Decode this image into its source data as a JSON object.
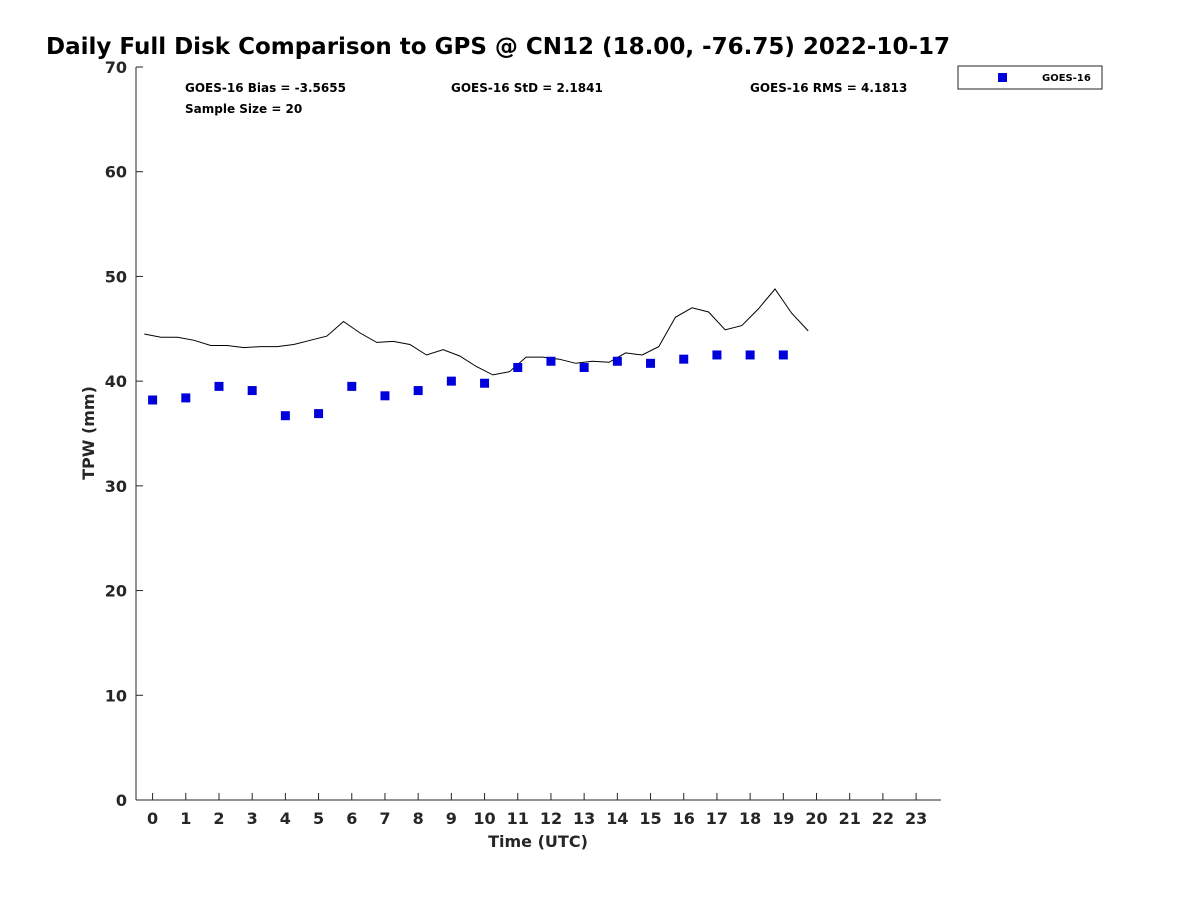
{
  "chart_data": {
    "type": "scatter",
    "title": "Daily Full Disk Comparison to GPS @ CN12 (18.00, -76.75) 2022-10-17",
    "xlabel": "Time (UTC)",
    "ylabel": "TPW (mm)",
    "xlim": [
      -0.5,
      23.75
    ],
    "ylim": [
      0,
      70
    ],
    "x_ticks": [
      "0",
      "1",
      "2",
      "3",
      "4",
      "5",
      "6",
      "7",
      "8",
      "9",
      "10",
      "11",
      "12",
      "13",
      "14",
      "15",
      "16",
      "17",
      "18",
      "19",
      "20",
      "21",
      "22",
      "23"
    ],
    "y_ticks": [
      "0",
      "10",
      "20",
      "30",
      "40",
      "50",
      "60",
      "70"
    ],
    "grid": false,
    "legend_position": "top-right",
    "stats": {
      "bias": "GOES-16 Bias = -3.5655",
      "std": "GOES-16 StD = 2.1841",
      "rms": "GOES-16 RMS = 4.1813",
      "sample_size": "Sample Size = 20"
    },
    "series": [
      {
        "name": "GOES-16",
        "kind": "scatter",
        "marker": "square",
        "color": "#0000dd",
        "x": [
          0,
          1,
          2,
          3,
          4,
          5,
          6,
          7,
          8,
          9,
          10,
          11,
          12,
          13,
          14,
          15,
          16,
          17,
          18,
          19
        ],
        "y": [
          38.2,
          38.4,
          39.5,
          39.1,
          36.7,
          36.9,
          39.5,
          38.6,
          39.1,
          40.0,
          39.8,
          41.3,
          41.9,
          41.3,
          41.9,
          41.7,
          42.1,
          42.5,
          42.5,
          42.5
        ]
      },
      {
        "kind": "line",
        "color": "#000000",
        "x": [
          -0.25,
          0.25,
          0.75,
          1.25,
          1.75,
          2.25,
          2.75,
          3.25,
          3.75,
          4.25,
          4.75,
          5.25,
          5.75,
          6.25,
          6.75,
          7.25,
          7.75,
          8.25,
          8.75,
          9.25,
          9.75,
          10.25,
          10.75,
          11.25,
          11.75,
          12.25,
          12.75,
          13.25,
          13.75,
          14.25,
          14.75,
          15.25,
          15.75,
          16.25,
          16.75,
          17.25,
          17.75,
          18.25,
          18.75,
          19.25,
          19.75
        ],
        "y": [
          44.5,
          44.2,
          44.2,
          43.9,
          43.4,
          43.4,
          43.2,
          43.3,
          43.3,
          43.5,
          43.9,
          44.3,
          45.7,
          44.6,
          43.7,
          43.8,
          43.5,
          42.5,
          43.0,
          42.4,
          41.4,
          40.6,
          40.9,
          42.3,
          42.3,
          42.1,
          41.7,
          41.9,
          41.8,
          42.7,
          42.5,
          43.3,
          46.1,
          47.0,
          46.6,
          44.9,
          45.3,
          46.9,
          48.8,
          46.5,
          44.8
        ]
      }
    ]
  }
}
